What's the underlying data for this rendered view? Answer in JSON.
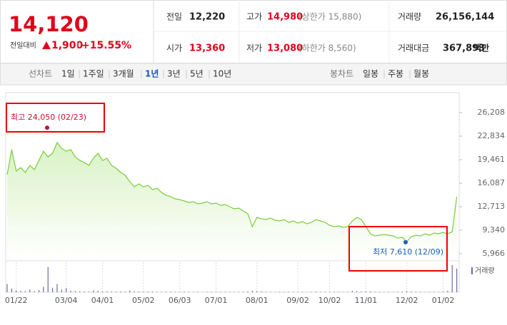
{
  "header": {
    "price": "14,120",
    "change_label": "전일대비",
    "change": "1,900",
    "change_rate": "+15.55%",
    "stats": [
      {
        "label": "전일",
        "value": "12,220"
      },
      {
        "label": "고가",
        "value": "14,980",
        "note": "(상한가 15,880)"
      },
      {
        "label": "거래량",
        "value": "26,156,144"
      },
      {
        "label": "시가",
        "value": "13,360"
      },
      {
        "label": "저가",
        "value": "13,080",
        "note": "(하한가 8,560)"
      },
      {
        "label": "거래대금",
        "value": "367,893",
        "unit": "백만"
      }
    ]
  },
  "line_tabs": {
    "label": "선차트",
    "items": [
      "1일",
      "1주일",
      "3개월",
      "1년",
      "3년",
      "5년",
      "10년"
    ],
    "selected": "1년"
  },
  "candle_tabs": {
    "label": "봉차트",
    "items": [
      "일봉",
      "주봉",
      "월봉"
    ]
  },
  "chart_data": {
    "type": "line",
    "color": "#79cc3a",
    "fill_color": "#d8f2c4",
    "grid": false,
    "categories": [
      null,
      null,
      "01/22",
      null,
      null,
      null,
      null,
      null,
      null,
      null,
      null,
      null,
      null,
      "03/04",
      null,
      null,
      null,
      null,
      null,
      null,
      null,
      "04/01",
      null,
      null,
      null,
      null,
      null,
      null,
      null,
      null,
      "05/02",
      null,
      null,
      null,
      null,
      null,
      null,
      null,
      "06/03",
      null,
      null,
      null,
      null,
      null,
      null,
      null,
      "07/01",
      null,
      null,
      null,
      null,
      null,
      null,
      null,
      null,
      "08/01",
      null,
      null,
      null,
      null,
      null,
      null,
      null,
      null,
      "09/02",
      null,
      null,
      null,
      null,
      null,
      null,
      "10/02",
      null,
      null,
      null,
      null,
      null,
      null,
      null,
      "11/01",
      null,
      null,
      null,
      null,
      null,
      null,
      null,
      null,
      "12/02",
      null,
      null,
      null,
      null,
      null,
      null,
      null,
      "01/02",
      null,
      null,
      null
    ],
    "values": [
      17310,
      20890,
      17820,
      18330,
      17620,
      18640,
      18030,
      19350,
      20680,
      19860,
      20380,
      21910,
      21090,
      20680,
      20890,
      19860,
      19350,
      19050,
      18640,
      19660,
      20380,
      19350,
      19660,
      18640,
      18230,
      17620,
      17210,
      16290,
      15570,
      15980,
      15570,
      15780,
      15160,
      15370,
      14760,
      14350,
      14140,
      13840,
      13730,
      13530,
      13320,
      13430,
      13120,
      13220,
      13430,
      13120,
      13220,
      12920,
      13020,
      12710,
      12400,
      12510,
      12100,
      11690,
      9850,
      11180,
      10970,
      10870,
      11080,
      10770,
      10670,
      10870,
      10460,
      10670,
      10360,
      10570,
      10260,
      10460,
      10870,
      10670,
      10460,
      10050,
      9850,
      9950,
      9750,
      9850,
      10670,
      11180,
      10870,
      9850,
      8830,
      8520,
      8620,
      8730,
      8620,
      8520,
      8210,
      8320,
      7700,
      8420,
      8620,
      8520,
      8830,
      8620,
      8930,
      8830,
      9030,
      8830,
      9130,
      14120
    ],
    "ylim": [
      5966,
      26208
    ],
    "yticks": [
      {
        "value": 5966,
        "label": "5,966"
      },
      {
        "value": 9340,
        "label": "9,340"
      },
      {
        "value": 12713,
        "label": "12,713"
      },
      {
        "value": 16087,
        "label": "16,087"
      },
      {
        "value": 19461,
        "label": "19,461"
      },
      {
        "value": 22834,
        "label": "22,834"
      },
      {
        "value": 26208,
        "label": "26,208"
      }
    ],
    "volume": {
      "name": "거래량",
      "color": "#6b6ba8",
      "values": [
        9000000,
        4000000,
        2000000,
        1500000,
        1200000,
        3000000,
        1000000,
        2500000,
        6000000,
        28000000,
        5000000,
        9000000,
        3000000,
        4500000,
        1500000,
        1200000,
        1000000,
        900000,
        800000,
        2000000,
        1500000,
        900000,
        1100000,
        800000,
        700000,
        900000,
        700000,
        1800000,
        1000000,
        900000,
        600000,
        700000,
        800000,
        600000,
        500000,
        700000,
        600000,
        500000,
        400000,
        600000,
        500000,
        400000,
        500000,
        400000,
        600000,
        500000,
        400000,
        500000,
        600000,
        500000,
        400000,
        500000,
        700000,
        900000,
        1500000,
        1200000,
        800000,
        600000,
        500000,
        400000,
        500000,
        400000,
        600000,
        500000,
        400000,
        500000,
        400000,
        500000,
        700000,
        600000,
        500000,
        400000,
        600000,
        500000,
        400000,
        500000,
        1500000,
        1200000,
        800000,
        1000000,
        900000,
        600000,
        500000,
        400000,
        500000,
        400000,
        600000,
        700000,
        1200000,
        800000,
        600000,
        500000,
        400000,
        500000,
        600000,
        500000,
        700000,
        1500000,
        30000000,
        26156144
      ]
    },
    "annotations": [
      {
        "text": "최고 24,050 (02/23)",
        "value": 24050,
        "color": "#c8102e"
      },
      {
        "text": "최저 7,610 (12/09)",
        "value": 7610,
        "color": "#1a5fb4"
      }
    ]
  }
}
